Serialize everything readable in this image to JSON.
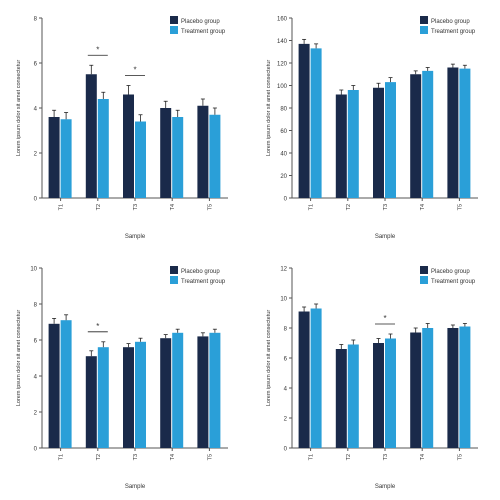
{
  "colors": {
    "series1": "#1a2a4a",
    "series2": "#2a9fd8",
    "axis": "#555555",
    "text": "#333333"
  },
  "chart_data": [
    {
      "type": "bar",
      "ylabel": "Lorem ipsum dolor sit amet consectetur",
      "xlabel": "Sample",
      "ylim": [
        0,
        8
      ],
      "yticks": [
        "0",
        "2",
        "4",
        "6",
        "8"
      ],
      "categories": [
        "T1",
        "T2",
        "T3",
        "T4",
        "T5"
      ],
      "legend": {
        "placement": "top-right",
        "entries": [
          "Placebo group",
          "Treatment group"
        ]
      },
      "series": [
        {
          "name": "Placebo group",
          "values": [
            3.6,
            5.5,
            4.6,
            4.0,
            4.1
          ],
          "errors": [
            0.3,
            0.4,
            0.4,
            0.3,
            0.3
          ]
        },
        {
          "name": "Treatment group",
          "values": [
            3.5,
            4.4,
            3.4,
            3.6,
            3.7
          ],
          "errors": [
            0.3,
            0.3,
            0.3,
            0.3,
            0.3
          ]
        }
      ],
      "annotations": [
        {
          "category": 1,
          "text": "*"
        },
        {
          "category": 2,
          "text": "*"
        }
      ]
    },
    {
      "type": "bar",
      "ylabel": "Lorem ipsum dolor sit amet consectetur",
      "xlabel": "Sample",
      "ylim": [
        0,
        160
      ],
      "yticks": [
        "0",
        "20",
        "40",
        "60",
        "80",
        "100",
        "120",
        "140",
        "160"
      ],
      "categories": [
        "T1",
        "T2",
        "T3",
        "T4",
        "T5"
      ],
      "legend": {
        "placement": "top-right",
        "entries": [
          "Placebo group",
          "Treatment group"
        ]
      },
      "series": [
        {
          "name": "Placebo group",
          "values": [
            137,
            92,
            98,
            110,
            116
          ],
          "errors": [
            4,
            4,
            4,
            3,
            3
          ]
        },
        {
          "name": "Treatment group",
          "values": [
            133,
            96,
            103,
            113,
            115
          ],
          "errors": [
            4,
            4,
            4,
            3,
            3
          ]
        }
      ],
      "annotations": []
    },
    {
      "type": "bar",
      "ylabel": "Lorem ipsum dolor sit amet consectetur",
      "xlabel": "Sample",
      "ylim": [
        0,
        10
      ],
      "yticks": [
        "0",
        "2",
        "4",
        "6",
        "8",
        "10"
      ],
      "categories": [
        "T1",
        "T2",
        "T3",
        "T4",
        "T5"
      ],
      "legend": {
        "placement": "top-right",
        "entries": [
          "Placebo group",
          "Treatment group"
        ]
      },
      "series": [
        {
          "name": "Placebo group",
          "values": [
            6.9,
            5.1,
            5.6,
            6.1,
            6.2
          ],
          "errors": [
            0.3,
            0.3,
            0.2,
            0.2,
            0.2
          ]
        },
        {
          "name": "Treatment group",
          "values": [
            7.1,
            5.6,
            5.9,
            6.4,
            6.4
          ],
          "errors": [
            0.3,
            0.3,
            0.2,
            0.2,
            0.2
          ]
        }
      ],
      "annotations": [
        {
          "category": 1,
          "text": "*"
        }
      ]
    },
    {
      "type": "bar",
      "ylabel": "Lorem ipsum dolor sit amet consectetur",
      "xlabel": "Sample",
      "ylim": [
        0,
        12
      ],
      "yticks": [
        "0",
        "2",
        "4",
        "6",
        "8",
        "10",
        "12"
      ],
      "categories": [
        "T1",
        "T2",
        "T3",
        "T4",
        "T5"
      ],
      "legend": {
        "placement": "top-right",
        "entries": [
          "Placebo group",
          "Treatment group"
        ]
      },
      "series": [
        {
          "name": "Placebo group",
          "values": [
            9.1,
            6.6,
            7.0,
            7.7,
            8.0
          ],
          "errors": [
            0.3,
            0.3,
            0.3,
            0.3,
            0.2
          ]
        },
        {
          "name": "Treatment group",
          "values": [
            9.3,
            6.9,
            7.3,
            8.0,
            8.1
          ],
          "errors": [
            0.3,
            0.3,
            0.3,
            0.3,
            0.2
          ]
        }
      ],
      "annotations": [
        {
          "category": 2,
          "text": "*"
        }
      ]
    }
  ]
}
